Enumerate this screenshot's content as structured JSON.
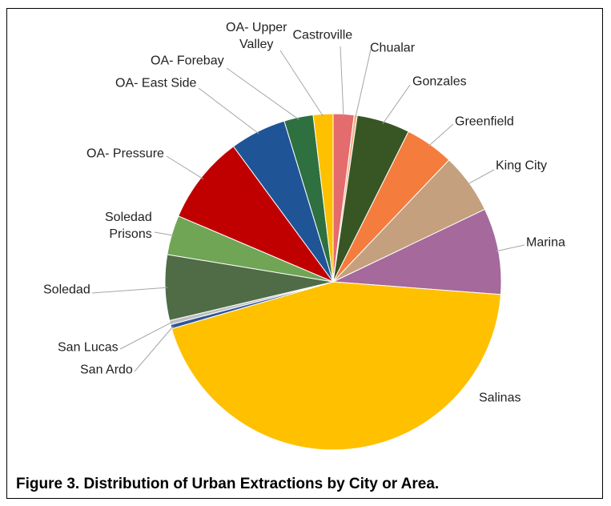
{
  "chart_data": {
    "type": "pie",
    "title": "Figure 3.  Distribution of Urban Extractions by City or Area.",
    "categories": [
      "Castroville",
      "Chualar",
      "Gonzales",
      "Greenfield",
      "King City",
      "Marina",
      "Salinas",
      "San Ardo",
      "San Lucas",
      "Soledad",
      "Soledad\nPrisons",
      "OA- Pressure",
      "OA- East Side",
      "OA- Forebay",
      "OA- Upper\nValley"
    ],
    "values": [
      2.0,
      0.3,
      5.1,
      4.7,
      5.8,
      8.3,
      44.3,
      0.4,
      0.4,
      6.3,
      3.8,
      8.5,
      5.4,
      2.8,
      1.9
    ],
    "colors": [
      "#e46c6c",
      "#f2b38a",
      "#375623",
      "#f47c3c",
      "#c4a07e",
      "#a5699c",
      "#ffc000",
      "#2f5597",
      "#bfbfbf",
      "#4f6c47",
      "#70a556",
      "#c00000",
      "#1f5597",
      "#2e7040",
      "#ffc000"
    ]
  }
}
